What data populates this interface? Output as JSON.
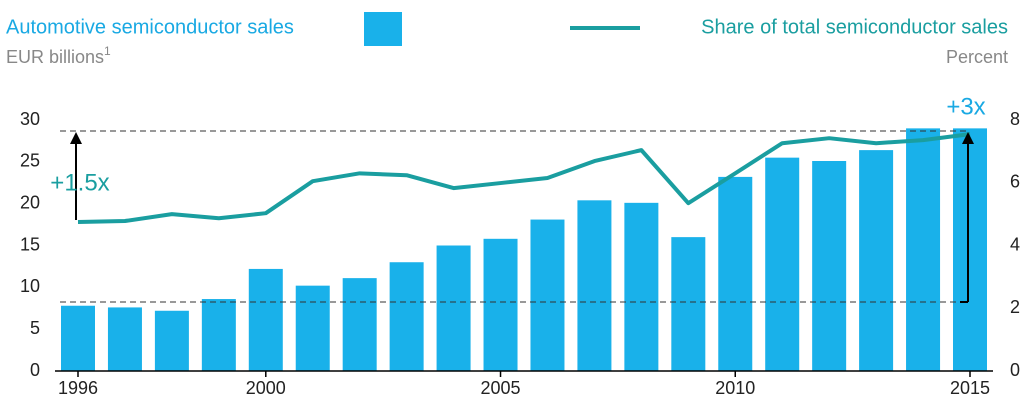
{
  "chart_data": {
    "type": "bar",
    "legend_bar": "Automotive semiconductor sales",
    "left_unit": "EUR billions",
    "left_unit_sup": "1",
    "legend_line": "Share of total semiconductor sales",
    "right_unit": "Percent",
    "categories": [
      "1996",
      null,
      null,
      null,
      "2000",
      null,
      null,
      null,
      null,
      "2005",
      null,
      null,
      null,
      null,
      "2010",
      null,
      null,
      null,
      null,
      "2015"
    ],
    "series": [
      {
        "name": "Automotive semiconductor sales",
        "color": "#19b1ea",
        "type": "bar",
        "values": [
          7.8,
          7.6,
          7.2,
          8.6,
          12.2,
          10.2,
          11.1,
          13.0,
          15.0,
          15.8,
          18.1,
          20.4,
          20.1,
          16.0,
          23.2,
          25.5,
          25.1,
          26.4,
          29.0,
          29.0
        ]
      },
      {
        "name": "Share of total semiconductor sales",
        "color": "#1a9ea0",
        "type": "line",
        "axis": "y2",
        "values": [
          4.75,
          4.78,
          5.0,
          4.87,
          5.03,
          6.05,
          6.3,
          6.24,
          5.83,
          5.99,
          6.15,
          6.69,
          7.04,
          5.35,
          6.3,
          7.26,
          7.42,
          7.26,
          7.36,
          7.55
        ]
      }
    ],
    "ylim": [
      0,
      30
    ],
    "yticks": [
      0,
      5,
      10,
      15,
      20,
      25,
      30
    ],
    "y2lim": [
      0,
      8
    ],
    "y2ticks": [
      0,
      2,
      4,
      6,
      8
    ],
    "annotations": [
      "+1.5x",
      "+3x"
    ]
  }
}
